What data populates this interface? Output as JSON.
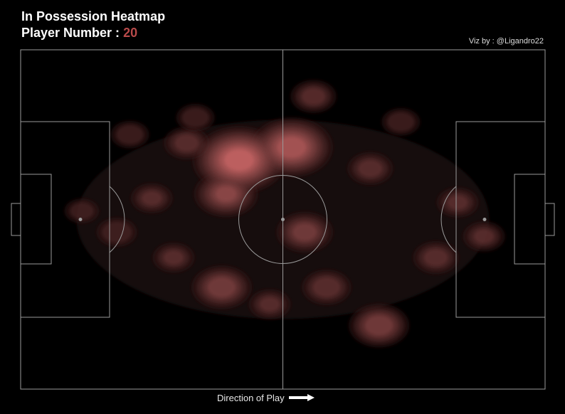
{
  "header": {
    "title": "In Possession Heatmap",
    "player_label": "Player Number :",
    "player_number": "20",
    "credit": "Viz by : @Ligandro22"
  },
  "footer": {
    "direction_label": "Direction of Play"
  },
  "colors": {
    "background": "#000000",
    "pitch_lines": "#9a9a9a",
    "accent": "#b84a4a",
    "heat_low": "#1a0d0d",
    "heat_high": "#d26a6a"
  },
  "icons": {
    "direction": "right-arrow-icon"
  },
  "chart_data": {
    "type": "heatmap",
    "title": "In Possession Heatmap",
    "subtitle": "Player Number : 20",
    "pitch": {
      "length": 120,
      "width": 80
    },
    "grid": false,
    "legend": "none",
    "density_peaks": [
      {
        "x": 50,
        "y": 54,
        "weight": 1.0
      },
      {
        "x": 62,
        "y": 57,
        "weight": 0.85
      },
      {
        "x": 47,
        "y": 46,
        "weight": 0.6
      },
      {
        "x": 46,
        "y": 24,
        "weight": 0.55
      },
      {
        "x": 65,
        "y": 37,
        "weight": 0.5
      },
      {
        "x": 70,
        "y": 24,
        "weight": 0.4
      },
      {
        "x": 82,
        "y": 15,
        "weight": 0.55
      },
      {
        "x": 95,
        "y": 31,
        "weight": 0.35
      },
      {
        "x": 106,
        "y": 36,
        "weight": 0.3
      },
      {
        "x": 100,
        "y": 44,
        "weight": 0.3
      },
      {
        "x": 67,
        "y": 69,
        "weight": 0.35
      },
      {
        "x": 80,
        "y": 52,
        "weight": 0.35
      },
      {
        "x": 38,
        "y": 58,
        "weight": 0.35
      },
      {
        "x": 30,
        "y": 45,
        "weight": 0.3
      },
      {
        "x": 35,
        "y": 31,
        "weight": 0.3
      },
      {
        "x": 25,
        "y": 60,
        "weight": 0.25
      },
      {
        "x": 22,
        "y": 37,
        "weight": 0.28
      },
      {
        "x": 14,
        "y": 42,
        "weight": 0.2
      },
      {
        "x": 87,
        "y": 63,
        "weight": 0.25
      },
      {
        "x": 57,
        "y": 20,
        "weight": 0.3
      },
      {
        "x": 40,
        "y": 64,
        "weight": 0.25
      }
    ]
  }
}
